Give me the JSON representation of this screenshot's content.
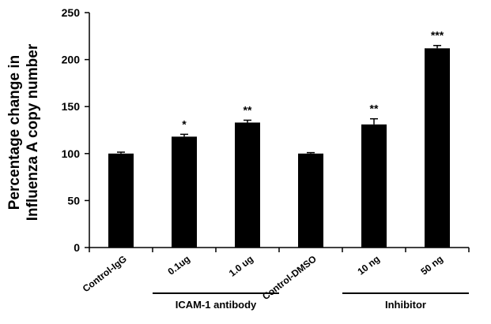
{
  "chart_data": {
    "type": "bar",
    "ylabel_lines": [
      "Percentage change in",
      "Influenza A copy number"
    ],
    "ylim": [
      0,
      250
    ],
    "yticks": [
      0,
      50,
      100,
      150,
      200,
      250
    ],
    "categories": [
      "Control-IgG",
      "0.1ug",
      "1.0 ug",
      "Control-DMSO",
      "10 ng",
      "50 ng"
    ],
    "values": [
      100,
      118,
      133,
      100,
      131,
      212
    ],
    "errors": [
      1.5,
      2.5,
      2.5,
      1,
      6,
      3
    ],
    "significance": [
      "",
      "*",
      "**",
      "",
      "**",
      "***"
    ],
    "groups": [
      {
        "label": "ICAM-1 antibody",
        "from": 1,
        "to": 2
      },
      {
        "label": "Inhibitor",
        "from": 4,
        "to": 5
      }
    ],
    "grid": false,
    "legend": "none",
    "bar_color": "#000000"
  }
}
